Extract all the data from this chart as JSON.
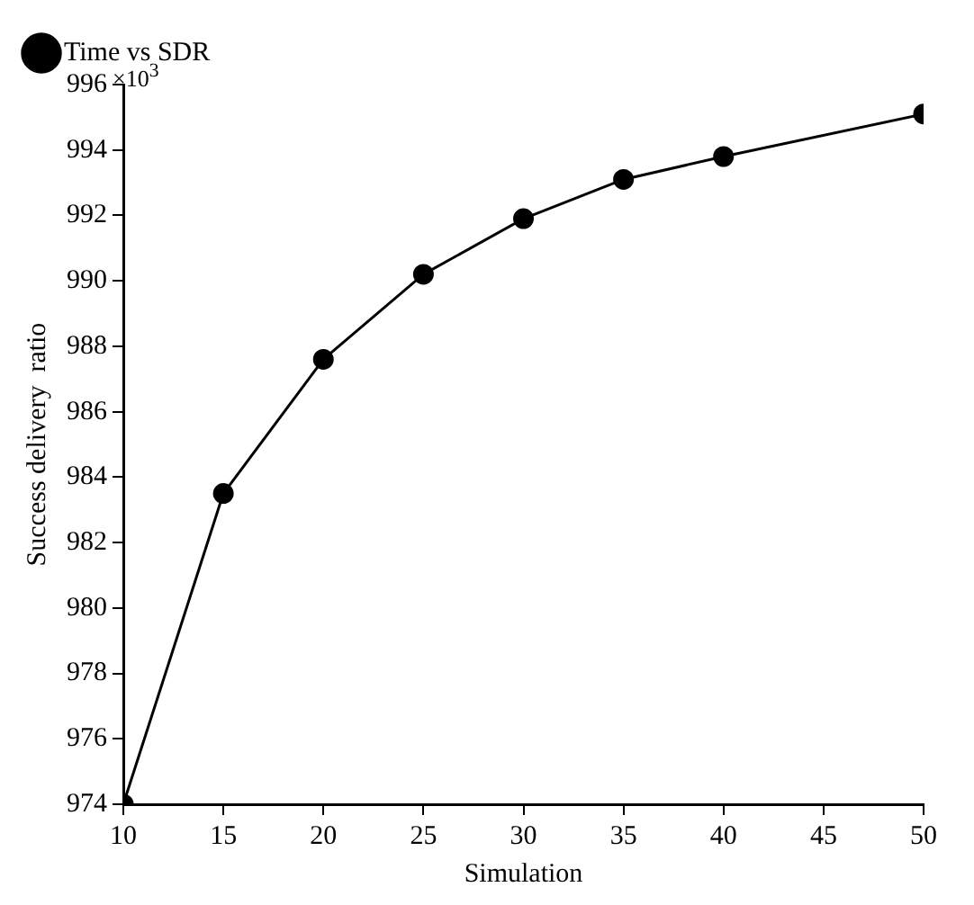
{
  "chart_data": {
    "type": "line",
    "xlabel": "Simulation",
    "ylabel": "Success delivery  ratio",
    "annotations": [
      "×10$^{3}$"
    ],
    "x": [
      10,
      15,
      20,
      25,
      30,
      35,
      40,
      50
    ],
    "series": [
      {
        "name": "Time vs SDR",
        "color": "#000000",
        "values": [
          974,
          983.5,
          987.6,
          990.2,
          991.9,
          993.1,
          993.8,
          995.1
        ]
      }
    ],
    "xlim": [
      10,
      50
    ],
    "xticks": [
      10,
      15,
      20,
      25,
      30,
      35,
      40,
      45,
      50
    ],
    "ylim": [
      974,
      996
    ],
    "yticks": [
      974,
      976,
      978,
      980,
      982,
      984,
      986,
      988,
      990,
      992,
      994,
      996
    ],
    "grid": false,
    "legend": "top left",
    "marker": "circle",
    "line_style": "solid"
  }
}
